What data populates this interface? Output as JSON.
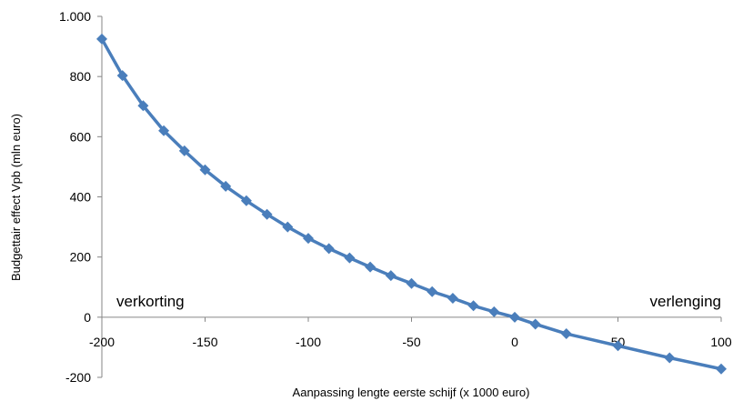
{
  "chart_data": {
    "type": "line",
    "title": "",
    "xlabel": "Aanpassing lengte eerste schijf (x 1000 euro)",
    "ylabel": "Budgettair effect Vpb (mln euro)",
    "xlim": [
      -200,
      100
    ],
    "ylim": [
      -200,
      1000
    ],
    "x_ticks": [
      -200,
      -150,
      -100,
      -50,
      0,
      50,
      100
    ],
    "x_tick_labels": [
      "-200",
      "-150",
      "-100",
      "-50",
      "0",
      "50",
      "100"
    ],
    "y_ticks": [
      -200,
      0,
      200,
      400,
      600,
      800,
      1000
    ],
    "y_tick_labels": [
      "-200",
      "0",
      "200",
      "400",
      "600",
      "800",
      "1.000"
    ],
    "grid": false,
    "series": [
      {
        "color": "#4a7ebb",
        "marker": "diamond",
        "x": [
          -200,
          -190,
          -180,
          -170,
          -160,
          -150,
          -140,
          -130,
          -120,
          -110,
          -100,
          -90,
          -80,
          -70,
          -60,
          -50,
          -40,
          -30,
          -20,
          -10,
          0,
          10,
          25,
          50,
          75,
          100
        ],
        "y": [
          925,
          803,
          703,
          620,
          553,
          490,
          435,
          387,
          342,
          300,
          262,
          228,
          197,
          167,
          138,
          112,
          85,
          63,
          38,
          18,
          0,
          -23,
          -55,
          -95,
          -135,
          -172
        ]
      }
    ],
    "annotations": [
      {
        "text": "verkorting",
        "x": -200,
        "y": 0
      },
      {
        "text": "verlenging",
        "x": 100,
        "y": 0
      }
    ]
  }
}
